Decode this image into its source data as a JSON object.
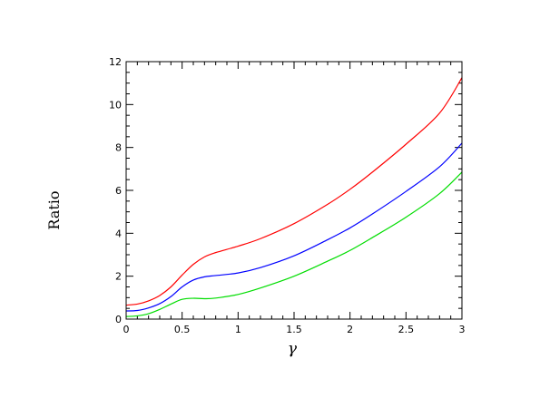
{
  "chart_data": {
    "type": "line",
    "title": "",
    "xlabel": "γ",
    "ylabel": "Ratio",
    "xlim": [
      0,
      3
    ],
    "ylim": [
      0,
      12
    ],
    "x_ticks": [
      0,
      0.5,
      1,
      1.5,
      2,
      2.5,
      3
    ],
    "x_tick_labels": [
      "0",
      "0.5",
      "1",
      "1.5",
      "2",
      "2.5",
      "3"
    ],
    "y_ticks": [
      0,
      2,
      4,
      6,
      8,
      10,
      12
    ],
    "y_tick_labels": [
      "0",
      "2",
      "4",
      "6",
      "8",
      "10",
      "12"
    ],
    "x_minor_step": 0.1,
    "y_minor_step": 0.5,
    "grid": false,
    "series": [
      {
        "color": "#ff0000",
        "x": [
          0,
          0.1,
          0.2,
          0.3,
          0.4,
          0.5,
          0.6,
          0.7,
          0.8,
          1.0,
          1.2,
          1.5,
          1.8,
          2.0,
          2.2,
          2.5,
          2.8,
          3.0
        ],
        "y": [
          0.65,
          0.7,
          0.85,
          1.1,
          1.5,
          2.05,
          2.55,
          2.9,
          3.1,
          3.4,
          3.75,
          4.45,
          5.35,
          6.05,
          6.85,
          8.15,
          9.6,
          11.25
        ]
      },
      {
        "color": "#0000ff",
        "x": [
          0,
          0.1,
          0.2,
          0.3,
          0.4,
          0.5,
          0.6,
          0.7,
          0.8,
          1.0,
          1.2,
          1.5,
          1.8,
          2.0,
          2.2,
          2.5,
          2.8,
          3.0
        ],
        "y": [
          0.38,
          0.4,
          0.52,
          0.72,
          1.05,
          1.5,
          1.82,
          1.97,
          2.03,
          2.15,
          2.4,
          2.95,
          3.7,
          4.25,
          4.9,
          5.95,
          7.1,
          8.2
        ]
      },
      {
        "color": "#00dd00",
        "x": [
          0,
          0.1,
          0.2,
          0.3,
          0.4,
          0.5,
          0.6,
          0.7,
          0.8,
          1.0,
          1.2,
          1.5,
          1.8,
          2.0,
          2.2,
          2.5,
          2.8,
          3.0
        ],
        "y": [
          0.12,
          0.15,
          0.25,
          0.45,
          0.7,
          0.92,
          0.97,
          0.95,
          0.98,
          1.15,
          1.45,
          2.0,
          2.7,
          3.2,
          3.8,
          4.75,
          5.85,
          6.85
        ]
      }
    ]
  }
}
